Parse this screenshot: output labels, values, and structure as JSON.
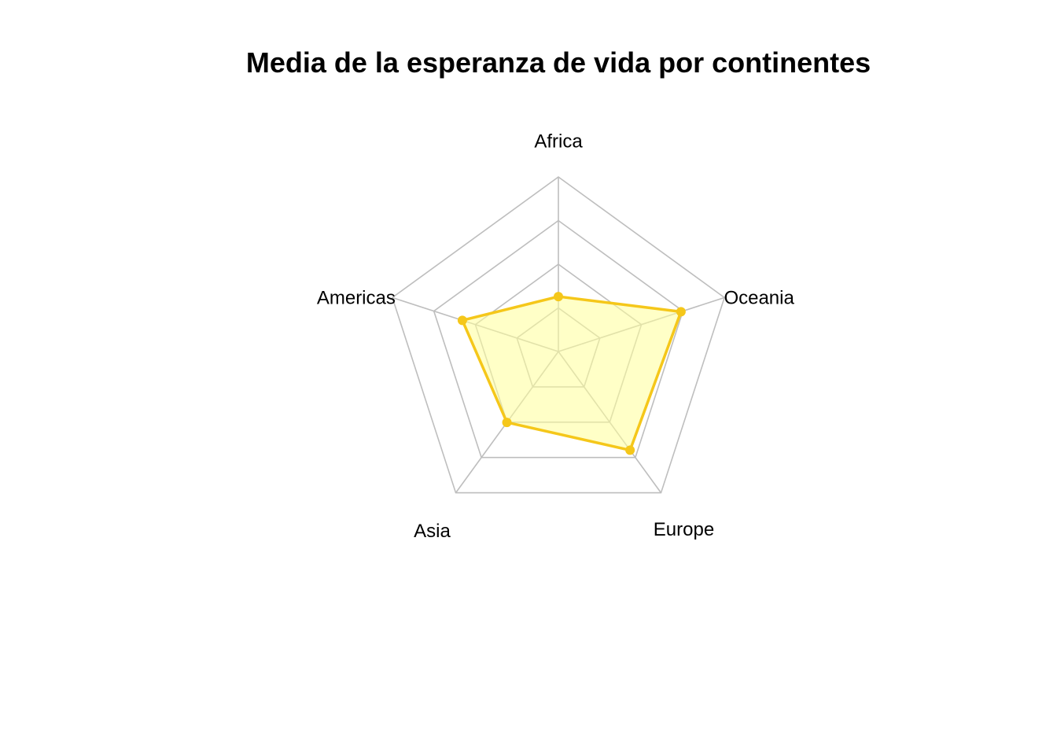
{
  "chart_data": {
    "type": "radar",
    "title": "Media de la esperanza de vida por continentes",
    "categories": [
      "Africa",
      "Oceania",
      "Europe",
      "Asia",
      "Americas"
    ],
    "series": [
      {
        "values": [
          48.9,
          74.3,
          71.9,
          60.1,
          64.7
        ],
        "color": "#F5C71A",
        "fill": "#FFFF99"
      }
    ],
    "axis_range": [
      30,
      90
    ],
    "grid_levels": 4,
    "grid_color": "#BEBEBE",
    "legend": "none"
  }
}
